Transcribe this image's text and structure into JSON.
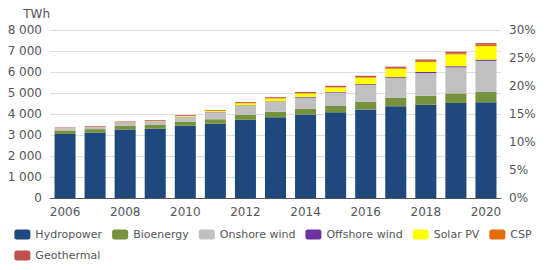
{
  "chart_data": {
    "type": "bar",
    "ylabel": "TWh",
    "categories": [
      "2006",
      null,
      "2008",
      null,
      "2010",
      null,
      "2012",
      null,
      "2014",
      null,
      "2016",
      null,
      "2018",
      null,
      "2020"
    ],
    "series": [
      {
        "name": "Hydropower",
        "color": "#1f497d",
        "values": [
          3050,
          3120,
          3260,
          3300,
          3440,
          3540,
          3720,
          3840,
          3980,
          4080,
          4220,
          4370,
          4440,
          4520,
          4560
        ]
      },
      {
        "name": "Bioenergy",
        "color": "#76923c",
        "values": [
          160,
          160,
          170,
          175,
          200,
          210,
          250,
          265,
          280,
          300,
          360,
          400,
          430,
          460,
          490
        ]
      },
      {
        "name": "Onshore wind",
        "color": "#c0c0c0",
        "values": [
          100,
          100,
          150,
          170,
          220,
          310,
          420,
          470,
          520,
          640,
          800,
          940,
          1080,
          1240,
          1480
        ]
      },
      {
        "name": "Offshore wind",
        "color": "#7030a0",
        "values": [
          10,
          10,
          12,
          12,
          15,
          18,
          22,
          25,
          30,
          35,
          40,
          45,
          50,
          55,
          60
        ]
      },
      {
        "name": "Solar PV",
        "color": "#ffff00",
        "values": [
          8,
          10,
          12,
          18,
          35,
          60,
          100,
          140,
          170,
          210,
          310,
          400,
          480,
          560,
          640
        ]
      },
      {
        "name": "CSP",
        "color": "#e36c09",
        "values": [
          4,
          4,
          5,
          5,
          5,
          8,
          12,
          15,
          18,
          22,
          30,
          38,
          48,
          58,
          70
        ]
      },
      {
        "name": "Geothermal",
        "color": "#c0504d",
        "values": [
          28,
          28,
          32,
          32,
          38,
          38,
          42,
          46,
          50,
          54,
          58,
          62,
          67,
          72,
          78
        ]
      }
    ],
    "stacked": true,
    "ylim": [
      0,
      8000
    ],
    "yticks": [
      0,
      {
        "value": 1000,
        "label": "1 000"
      },
      {
        "value": 2000,
        "label": "2 000"
      },
      {
        "value": 3000,
        "label": "3 000"
      },
      {
        "value": 4000,
        "label": "4 000"
      },
      {
        "value": 5000,
        "label": "5 000"
      },
      {
        "value": 6000,
        "label": "6 000"
      },
      {
        "value": 7000,
        "label": "7 000"
      },
      {
        "value": 8000,
        "label": "8 000"
      }
    ],
    "y2lim": [
      0,
      0.3
    ],
    "y2ticks": [
      {
        "value": 0.0,
        "label": "0%"
      },
      {
        "value": 0.05,
        "label": "5%"
      },
      {
        "value": 0.1,
        "label": "10%"
      },
      {
        "value": 0.15,
        "label": "15%"
      },
      {
        "value": 0.2,
        "label": "20%"
      },
      {
        "value": 0.25,
        "label": "25%"
      },
      {
        "value": 0.3,
        "label": "30%"
      }
    ],
    "grid": true,
    "legend": "bottom"
  }
}
